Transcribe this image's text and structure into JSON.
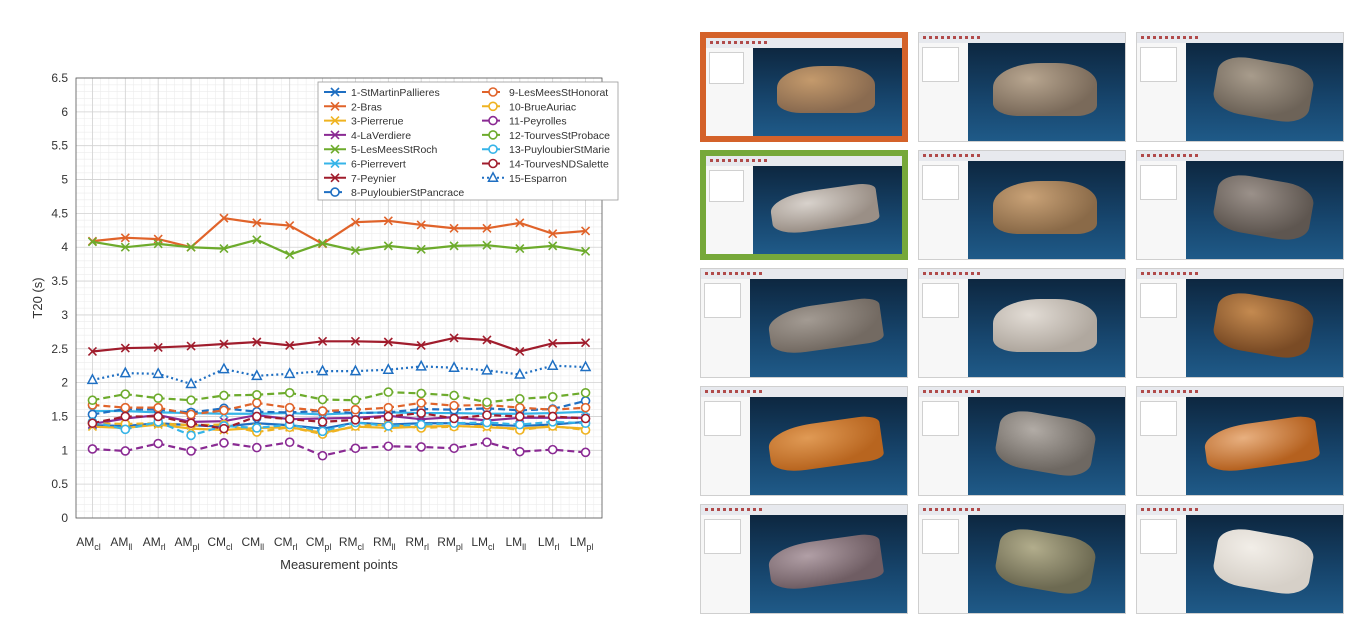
{
  "chart_data": {
    "type": "line",
    "title": "",
    "xlabel": "Measurement points",
    "ylabel": "T20 (s)",
    "ylim": [
      0,
      6.5
    ],
    "yticks": [
      "0",
      "0.5",
      "1",
      "1.5",
      "2",
      "2.5",
      "3",
      "3.5",
      "4",
      "4.5",
      "5",
      "5.5",
      "6",
      "6.5"
    ],
    "grid": true,
    "legend_position": "top-right",
    "categories": [
      {
        "base": "AM",
        "sub": "cl"
      },
      {
        "base": "AM",
        "sub": "ll"
      },
      {
        "base": "AM",
        "sub": "rl"
      },
      {
        "base": "AM",
        "sub": "pl"
      },
      {
        "base": "CM",
        "sub": "cl"
      },
      {
        "base": "CM",
        "sub": "ll"
      },
      {
        "base": "CM",
        "sub": "rl"
      },
      {
        "base": "CM",
        "sub": "pl"
      },
      {
        "base": "RM",
        "sub": "cl"
      },
      {
        "base": "RM",
        "sub": "ll"
      },
      {
        "base": "RM",
        "sub": "rl"
      },
      {
        "base": "RM",
        "sub": "pl"
      },
      {
        "base": "LM",
        "sub": "cl"
      },
      {
        "base": "LM",
        "sub": "ll"
      },
      {
        "base": "LM",
        "sub": "rl"
      },
      {
        "base": "LM",
        "sub": "pl"
      }
    ],
    "series": [
      {
        "name": "1-StMartinPallieres",
        "color": "#1f6fc2",
        "dash": "solid",
        "marker": "x",
        "values": [
          1.37,
          1.36,
          1.4,
          1.37,
          1.35,
          1.4,
          1.37,
          1.32,
          1.41,
          1.38,
          1.4,
          1.4,
          1.38,
          1.36,
          1.38,
          1.42
        ]
      },
      {
        "name": "2-Bras",
        "color": "#e0632a",
        "dash": "solid",
        "marker": "x",
        "values": [
          4.09,
          4.14,
          4.12,
          4.0,
          4.43,
          4.36,
          4.32,
          4.05,
          4.37,
          4.39,
          4.33,
          4.28,
          4.28,
          4.36,
          4.2,
          4.24
        ]
      },
      {
        "name": "3-Pierrerue",
        "color": "#efb321",
        "dash": "solid",
        "marker": "x",
        "values": [
          1.35,
          1.33,
          1.38,
          1.32,
          1.3,
          1.33,
          1.34,
          1.26,
          1.35,
          1.33,
          1.35,
          1.36,
          1.34,
          1.32,
          1.35,
          1.32
        ]
      },
      {
        "name": "4-LaVerdiere",
        "color": "#8a2a93",
        "dash": "solid",
        "marker": "x",
        "values": [
          1.39,
          1.47,
          1.52,
          1.42,
          1.43,
          1.52,
          1.46,
          1.47,
          1.48,
          1.51,
          1.46,
          1.49,
          1.44,
          1.48,
          1.48,
          1.48
        ]
      },
      {
        "name": "5-LesMeesStRoch",
        "color": "#6dab2c",
        "dash": "solid",
        "marker": "x",
        "values": [
          4.08,
          4.0,
          4.05,
          4.0,
          3.98,
          4.11,
          3.89,
          4.06,
          3.95,
          4.02,
          3.97,
          4.02,
          4.03,
          3.98,
          4.02,
          3.94
        ]
      },
      {
        "name": "6-Pierrevert",
        "color": "#36b4e8",
        "dash": "solid",
        "marker": "x",
        "values": [
          1.58,
          1.58,
          1.56,
          1.55,
          1.54,
          1.54,
          1.55,
          1.53,
          1.55,
          1.56,
          1.55,
          1.55,
          1.54,
          1.54,
          1.55,
          1.57
        ]
      },
      {
        "name": "7-Peynier",
        "color": "#a01c2c",
        "dash": "solid",
        "marker": "x",
        "values": [
          2.46,
          2.51,
          2.52,
          2.54,
          2.57,
          2.6,
          2.55,
          2.61,
          2.61,
          2.6,
          2.55,
          2.66,
          2.63,
          2.46,
          2.58,
          2.59
        ]
      },
      {
        "name": "8-PuyloubierStPancrace",
        "color": "#1f6fc2",
        "dash": "dash",
        "marker": "o",
        "values": [
          1.53,
          1.61,
          1.6,
          1.56,
          1.62,
          1.57,
          1.56,
          1.58,
          1.55,
          1.56,
          1.61,
          1.6,
          1.62,
          1.59,
          1.61,
          1.73
        ]
      },
      {
        "name": "9-LesMeesStHonorat",
        "color": "#e0632a",
        "dash": "dash",
        "marker": "o",
        "values": [
          1.67,
          1.63,
          1.63,
          1.53,
          1.59,
          1.7,
          1.63,
          1.58,
          1.6,
          1.63,
          1.7,
          1.66,
          1.67,
          1.63,
          1.6,
          1.63
        ]
      },
      {
        "name": "10-BrueAuriac",
        "color": "#efb321",
        "dash": "dash",
        "marker": "o",
        "values": [
          1.4,
          1.39,
          1.4,
          1.37,
          1.38,
          1.27,
          1.34,
          1.24,
          1.36,
          1.38,
          1.33,
          1.35,
          1.36,
          1.3,
          1.36,
          1.3
        ]
      },
      {
        "name": "11-Peyrolles",
        "color": "#8a2a93",
        "dash": "dash",
        "marker": "o",
        "values": [
          1.02,
          0.99,
          1.1,
          0.99,
          1.11,
          1.04,
          1.12,
          0.92,
          1.03,
          1.06,
          1.05,
          1.03,
          1.12,
          0.98,
          1.01,
          0.97
        ]
      },
      {
        "name": "12-TourvesStProbace",
        "color": "#6dab2c",
        "dash": "dash",
        "marker": "o",
        "values": [
          1.74,
          1.83,
          1.77,
          1.74,
          1.81,
          1.82,
          1.85,
          1.75,
          1.74,
          1.86,
          1.84,
          1.81,
          1.71,
          1.76,
          1.79,
          1.85
        ]
      },
      {
        "name": "13-PuyloubierStMarie",
        "color": "#36b4e8",
        "dash": "dash",
        "marker": "o",
        "values": [
          1.42,
          1.31,
          1.42,
          1.22,
          1.36,
          1.33,
          1.38,
          1.28,
          1.41,
          1.36,
          1.38,
          1.4,
          1.41,
          1.38,
          1.42,
          1.4
        ]
      },
      {
        "name": "14-TourvesNDSalette",
        "color": "#a01c2c",
        "dash": "dash",
        "marker": "o",
        "values": [
          1.4,
          1.5,
          1.5,
          1.4,
          1.32,
          1.5,
          1.46,
          1.42,
          1.45,
          1.5,
          1.55,
          1.47,
          1.52,
          1.5,
          1.5,
          1.47
        ]
      },
      {
        "name": "15-Esparron",
        "color": "#1f6fc2",
        "dash": "dot",
        "marker": "triangle",
        "values": [
          2.04,
          2.14,
          2.13,
          1.98,
          2.2,
          2.1,
          2.13,
          2.17,
          2.17,
          2.19,
          2.24,
          2.22,
          2.18,
          2.12,
          2.25,
          2.23
        ]
      }
    ]
  },
  "thumbnails": [
    {
      "highlight": "orange",
      "body": "#8a6b50",
      "accent": "#c49a6c",
      "shape": "dome"
    },
    {
      "highlight": "",
      "body": "#7a6a5a",
      "accent": "#b8a690",
      "shape": "dome"
    },
    {
      "highlight": "",
      "body": "#6d6358",
      "accent": "#a89c8c",
      "shape": "cross"
    },
    {
      "highlight": "green",
      "body": "#9a8f86",
      "accent": "#d8d2cc",
      "shape": "long"
    },
    {
      "highlight": "",
      "body": "#8a6a48",
      "accent": "#c9a277",
      "shape": "dome"
    },
    {
      "highlight": "",
      "body": "#5e5650",
      "accent": "#9b918a",
      "shape": "cross"
    },
    {
      "highlight": "",
      "body": "#736a62",
      "accent": "#a39b93",
      "shape": "long"
    },
    {
      "highlight": "",
      "body": "#b0a89f",
      "accent": "#e2dcd5",
      "shape": "dome"
    },
    {
      "highlight": "",
      "body": "#7a4b25",
      "accent": "#c48a50",
      "shape": "cross"
    },
    {
      "highlight": "",
      "body": "#b8651f",
      "accent": "#e09a55",
      "shape": "long"
    },
    {
      "highlight": "",
      "body": "#6e6862",
      "accent": "#b2aca6",
      "shape": "cross"
    },
    {
      "highlight": "",
      "body": "#b5611f",
      "accent": "#e8b080",
      "shape": "long"
    },
    {
      "highlight": "",
      "body": "#6f5d63",
      "accent": "#b19fa6",
      "shape": "long"
    },
    {
      "highlight": "",
      "body": "#6d6a52",
      "accent": "#b2ad8c",
      "shape": "cross"
    },
    {
      "highlight": "",
      "body": "#d6d0c8",
      "accent": "#f2eee8",
      "shape": "cross"
    }
  ]
}
